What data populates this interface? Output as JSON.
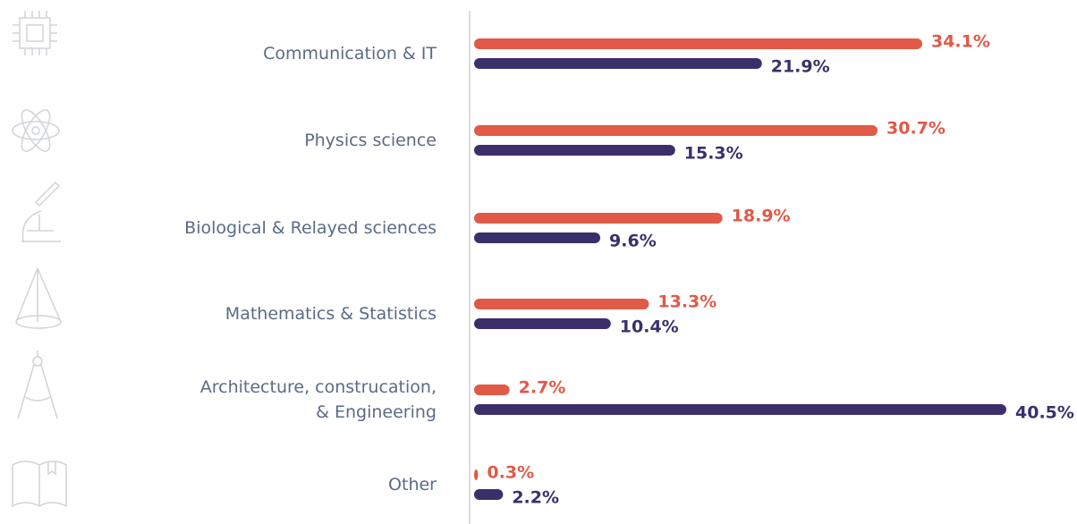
{
  "chart_data": {
    "type": "bar",
    "categories": [
      "Communication & IT",
      "Physics science",
      "Biological & Relayed sciences",
      "Mathematics & Statistics",
      "Architecture, construcation,\n& Engineering",
      "Other"
    ],
    "series": [
      {
        "color": "#e05a47",
        "values": [
          34.1,
          30.7,
          18.9,
          13.3,
          2.7,
          0.3
        ],
        "value_labels": [
          "34.1%",
          "30.7%",
          "18.9%",
          "13.3%",
          "2.7%",
          "0.3%"
        ]
      },
      {
        "color": "#3b2f6b",
        "values": [
          21.9,
          15.3,
          9.6,
          10.4,
          40.5,
          2.2
        ],
        "value_labels": [
          "21.9%",
          "15.3%",
          "9.6%",
          "10.4%",
          "40.5%",
          "2.2%"
        ]
      }
    ]
  }
}
